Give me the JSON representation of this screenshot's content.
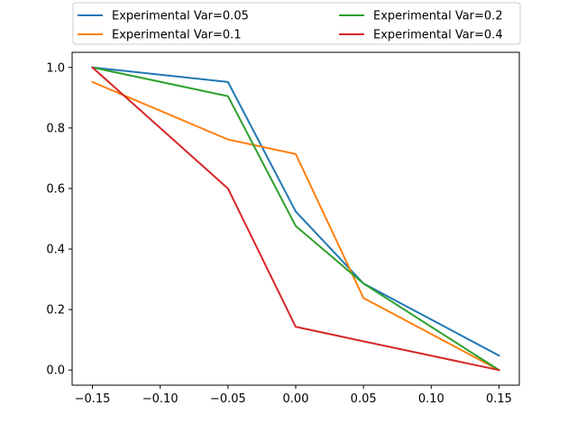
{
  "chart_data": {
    "type": "line",
    "title": "",
    "xlabel": "",
    "ylabel": "",
    "x": [
      -0.15,
      -0.05,
      0.0,
      0.05,
      0.15
    ],
    "xlim": [
      -0.165,
      0.165
    ],
    "ylim": [
      -0.05,
      1.05
    ],
    "x_ticks": [
      -0.15,
      -0.1,
      -0.05,
      0.0,
      0.05,
      0.1,
      0.15
    ],
    "x_tick_labels": [
      "−0.15",
      "−0.10",
      "−0.05",
      "0.00",
      "0.05",
      "0.10",
      "0.15"
    ],
    "y_ticks": [
      0.0,
      0.2,
      0.4,
      0.6,
      0.8,
      1.0
    ],
    "y_tick_labels": [
      "0.0",
      "0.2",
      "0.4",
      "0.6",
      "0.8",
      "1.0"
    ],
    "grid": false,
    "legend_placement": "top-outside",
    "series": [
      {
        "name": "Experimental Var=0.05",
        "color": "#1f77b4",
        "values": [
          1.0,
          0.952,
          0.524,
          0.286,
          0.048
        ]
      },
      {
        "name": "Experimental Var=0.1",
        "color": "#ff7f0e",
        "values": [
          0.952,
          0.762,
          0.714,
          0.238,
          0.0
        ]
      },
      {
        "name": "Experimental Var=0.2",
        "color": "#2ca02c",
        "values": [
          1.0,
          0.905,
          0.476,
          0.286,
          0.0
        ]
      },
      {
        "name": "Experimental Var=0.4",
        "color": "#d62728",
        "values": [
          1.0,
          0.6,
          0.143,
          0.095,
          0.0
        ]
      }
    ]
  }
}
